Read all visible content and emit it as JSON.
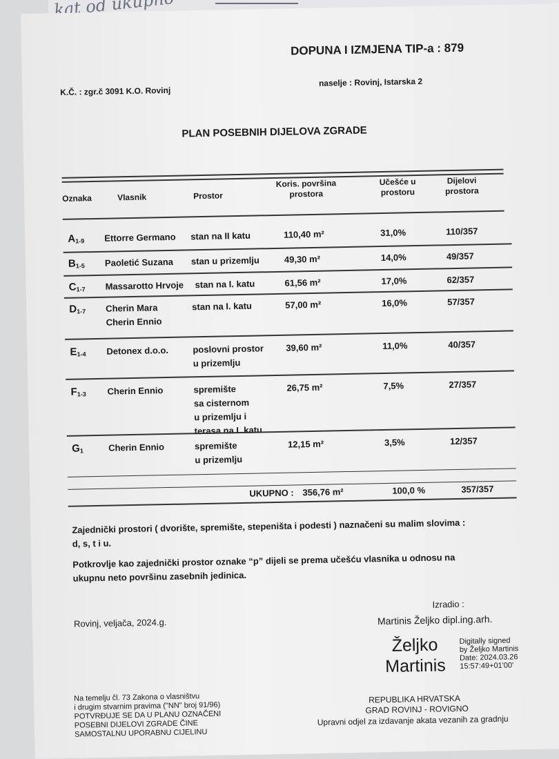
{
  "handwritten_note": "kat od ukupno",
  "header": {
    "title": "DOPUNA I IZMJENA TIP-a :",
    "number": "879",
    "kc": "K.Č. : zgr.č 3091 K.O. Rovinj",
    "naselje": "naselje : Rovinj, Istarska 2"
  },
  "plan_title": "PLAN POSEBNIH DIJELOVA ZGRADE",
  "table": {
    "columns": [
      "Oznaka",
      "Vlasnik",
      "Prostor",
      "Koris. površina\nprostora",
      "Učešće u\nprostoru",
      "Dijelovi\nprostora"
    ],
    "rows": [
      {
        "oznaka": "A",
        "sub": "1-9",
        "vlasnik": "Ettorre Germano",
        "prostor": "stan na II katu",
        "povrsina": "110,40 m²",
        "ucesce": "31,0%",
        "dijelovi": "110/357"
      },
      {
        "oznaka": "B",
        "sub": "1-5",
        "vlasnik": "Paoletić Suzana",
        "prostor": "stan u prizemlju",
        "povrsina": "49,30 m²",
        "ucesce": "14,0%",
        "dijelovi": "49/357"
      },
      {
        "oznaka": "C",
        "sub": "1-7",
        "vlasnik": "Massarotto Hrvoje",
        "prostor": "stan na I. katu",
        "povrsina": "61,56 m²",
        "ucesce": "17,0%",
        "dijelovi": "62/357"
      },
      {
        "oznaka": "D",
        "sub": "1-7",
        "vlasnik": "Cherin Mara\nCherin Ennio",
        "prostor": "stan na I. katu",
        "povrsina": "57,00 m²",
        "ucesce": "16,0%",
        "dijelovi": "57/357"
      },
      {
        "oznaka": "E",
        "sub": "1-4",
        "vlasnik": "Detonex d.o.o.",
        "prostor": "poslovni prostor\nu prizemlju",
        "povrsina": "39,60 m²",
        "ucesce": "11,0%",
        "dijelovi": "40/357"
      },
      {
        "oznaka": "F",
        "sub": "1-3",
        "vlasnik": "Cherin Ennio",
        "prostor": "spremište\nsa cisternom\nu prizemlju i\nterasa na I. katu",
        "povrsina": "26,75 m²",
        "ucesce": "7,5%",
        "dijelovi": "27/357"
      },
      {
        "oznaka": "G",
        "sub": "1",
        "vlasnik": "Cherin Ennio",
        "prostor": "spremište\nu prizemlju",
        "povrsina": "12,15 m²",
        "ucesce": "3,5%",
        "dijelovi": "12/357"
      }
    ],
    "total": {
      "label": "UKUPNO :",
      "povrsina": "356,76 m²",
      "ucesce": "100,0 %",
      "dijelovi": "357/357"
    }
  },
  "notes": [
    "Zajednički prostori ( dvorište, spremište, stepeništa i podesti ) naznačeni su malim slovima :\nd, s, t i u.",
    "Potkrovlje kao zajednički prostor oznake “p” dijeli se prema učešću vlasnika u odnosu na\nukupnu neto površinu zasebnih jedinica."
  ],
  "place_date": "Rovinj, veljača, 2024.g.",
  "izradio_label": "Izradio :",
  "izradio_name": "Martinis Željko dipl.ing.arh.",
  "signature": {
    "name1": "Željko",
    "name2": "Martinis",
    "info": "Digitally signed\nby Željko Martinis\nDate: 2024.03.26\n15:57:49+01'00'"
  },
  "legal": "Na temelju čl. 73 Zakona o vlasništvu\ni drugim stvarnim pravima (\"NN\" broj 91/96)\nPOTVRĐUJE SE DA U PLANU OZNAČENI\nPOSEBNI DIJELOVI ZGRADE ČINE\nSAMOSTALNU UPORABNU CIJELINU",
  "authority": [
    "REPUBLIKA HRVATSKA",
    "GRAD ROVINJ - ROVIGNO",
    "Upravni odjel za izdavanje akata vezanih za gradnju"
  ]
}
